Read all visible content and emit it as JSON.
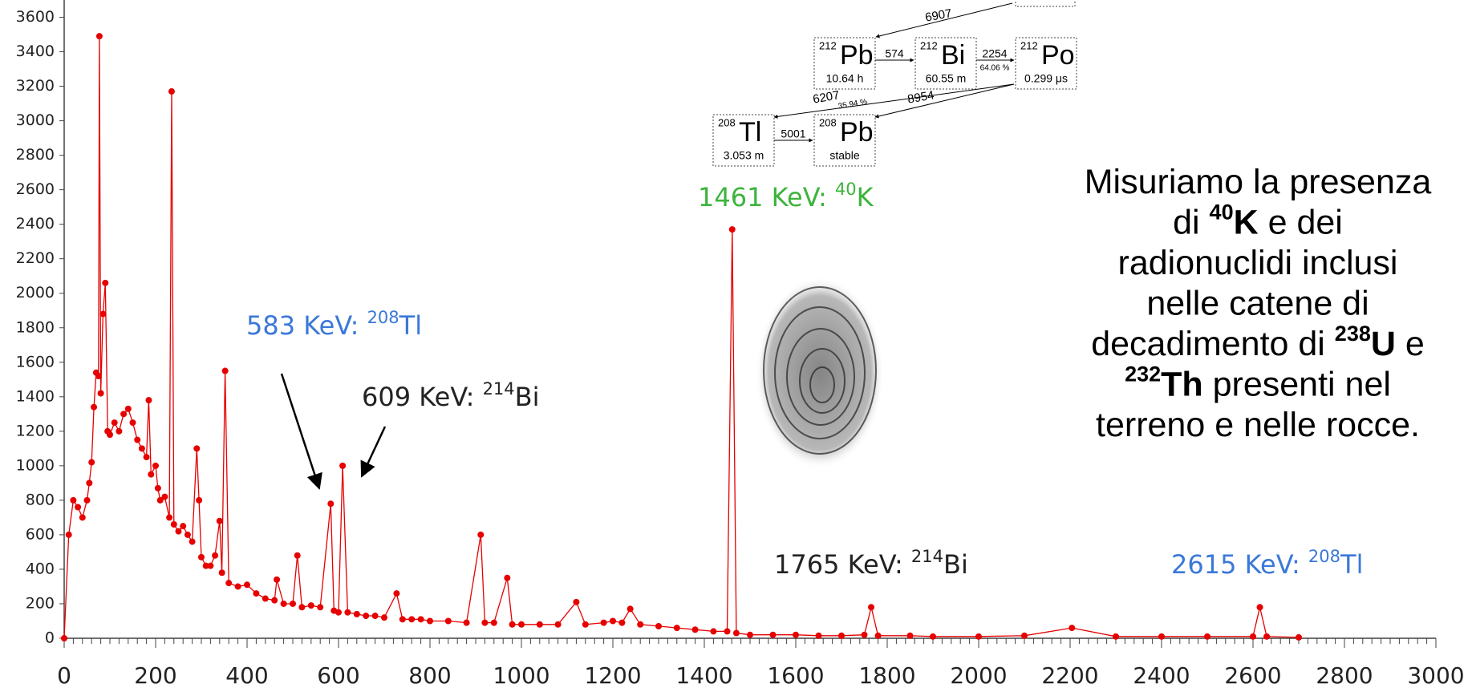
{
  "chart_data": {
    "type": "line",
    "color": "#e60000",
    "x": [
      0,
      10,
      20,
      30,
      40,
      50,
      55,
      60,
      65,
      70,
      75,
      77,
      80,
      85,
      90,
      95,
      100,
      110,
      120,
      130,
      140,
      150,
      160,
      170,
      180,
      185,
      190,
      200,
      205,
      210,
      220,
      230,
      235,
      240,
      250,
      260,
      270,
      280,
      290,
      295,
      300,
      310,
      320,
      330,
      340,
      345,
      352,
      360,
      380,
      400,
      420,
      440,
      460,
      465,
      480,
      500,
      510,
      520,
      540,
      560,
      583,
      590,
      600,
      609,
      620,
      640,
      660,
      680,
      700,
      727,
      740,
      760,
      780,
      800,
      840,
      880,
      911,
      920,
      940,
      969,
      980,
      1000,
      1040,
      1080,
      1120,
      1140,
      1180,
      1200,
      1220,
      1238,
      1260,
      1300,
      1340,
      1380,
      1420,
      1450,
      1461,
      1470,
      1500,
      1550,
      1600,
      1650,
      1700,
      1750,
      1765,
      1780,
      1850,
      1900,
      2000,
      2100,
      2204,
      2300,
      2400,
      2500,
      2600,
      2615,
      2630,
      2700
    ],
    "values": [
      0,
      600,
      800,
      760,
      700,
      800,
      900,
      1020,
      1340,
      1540,
      1520,
      3490,
      1420,
      1880,
      2060,
      1200,
      1180,
      1250,
      1200,
      1300,
      1330,
      1250,
      1150,
      1100,
      1050,
      1380,
      950,
      1000,
      870,
      800,
      820,
      700,
      3170,
      660,
      620,
      650,
      600,
      560,
      1100,
      800,
      470,
      420,
      420,
      480,
      680,
      380,
      1550,
      320,
      300,
      310,
      260,
      230,
      220,
      340,
      200,
      200,
      480,
      180,
      190,
      180,
      780,
      160,
      150,
      1000,
      150,
      140,
      130,
      130,
      120,
      260,
      110,
      110,
      110,
      100,
      100,
      90,
      600,
      90,
      90,
      350,
      80,
      80,
      80,
      80,
      210,
      80,
      90,
      100,
      90,
      170,
      80,
      70,
      60,
      50,
      40,
      40,
      2370,
      30,
      20,
      20,
      20,
      15,
      15,
      20,
      180,
      15,
      15,
      10,
      10,
      15,
      60,
      10,
      10,
      10,
      10,
      180,
      10,
      5
    ],
    "xlim": [
      0,
      3000
    ],
    "xticks": [
      0,
      200,
      400,
      600,
      800,
      1000,
      1200,
      1400,
      1600,
      1800,
      2000,
      2200,
      2400,
      2600,
      2800,
      3000
    ],
    "ylim": [
      0,
      3700
    ],
    "yticks": [
      0,
      200,
      400,
      600,
      800,
      1000,
      1200,
      1400,
      1600,
      1800,
      2000,
      2200,
      2400,
      2600,
      2800,
      3000,
      3200,
      3400,
      3600
    ],
    "grid": false,
    "annotations": [
      {
        "text": "583 KeV: ",
        "sup": "208",
        "element": "Tl",
        "color": "#3b78d8"
      },
      {
        "text": "609 KeV: ",
        "sup": "214",
        "element": "Bi",
        "color": "#222222"
      },
      {
        "text": "1461 KeV: ",
        "sup": "40",
        "element": "K",
        "color": "#3cb43c"
      },
      {
        "text": "1765 KeV: ",
        "sup": "214",
        "element": "Bi",
        "color": "#222222"
      },
      {
        "text": "2615 KeV: ",
        "sup": "208",
        "element": "Tl",
        "color": "#3b78d8"
      }
    ]
  },
  "decay_chain": {
    "nuclides": [
      {
        "mass": "212",
        "symbol": "Pb",
        "half_life": "10.64 h"
      },
      {
        "mass": "212",
        "symbol": "Bi",
        "half_life": "60.55 m"
      },
      {
        "mass": "212",
        "symbol": "Po",
        "half_life": "0.299 μs"
      },
      {
        "mass": "208",
        "symbol": "Tl",
        "half_life": "3.053 m"
      },
      {
        "mass": "208",
        "symbol": "Pb",
        "half_life": "stable"
      }
    ],
    "transitions": [
      "6907",
      "574",
      "2254",
      "64.06 %",
      "6207",
      "35.94 %",
      "8954",
      "5001"
    ]
  },
  "note": [
    [
      {
        "t": "Misuriamo la presenza"
      }
    ],
    [
      {
        "t": "di "
      },
      {
        "sup": "40"
      },
      {
        "b": "K"
      },
      {
        "t": " e dei"
      }
    ],
    [
      {
        "t": "radionuclidi inclusi"
      }
    ],
    [
      {
        "t": "nelle catene di"
      }
    ],
    [
      {
        "t": "decadimento di "
      },
      {
        "sup": "238"
      },
      {
        "b": "U"
      },
      {
        "t": " e"
      }
    ],
    [
      {
        "sup": "232"
      },
      {
        "b": "Th"
      },
      {
        "t": " presenti nel"
      }
    ],
    [
      {
        "t": "terreno e nelle rocce."
      }
    ]
  ]
}
